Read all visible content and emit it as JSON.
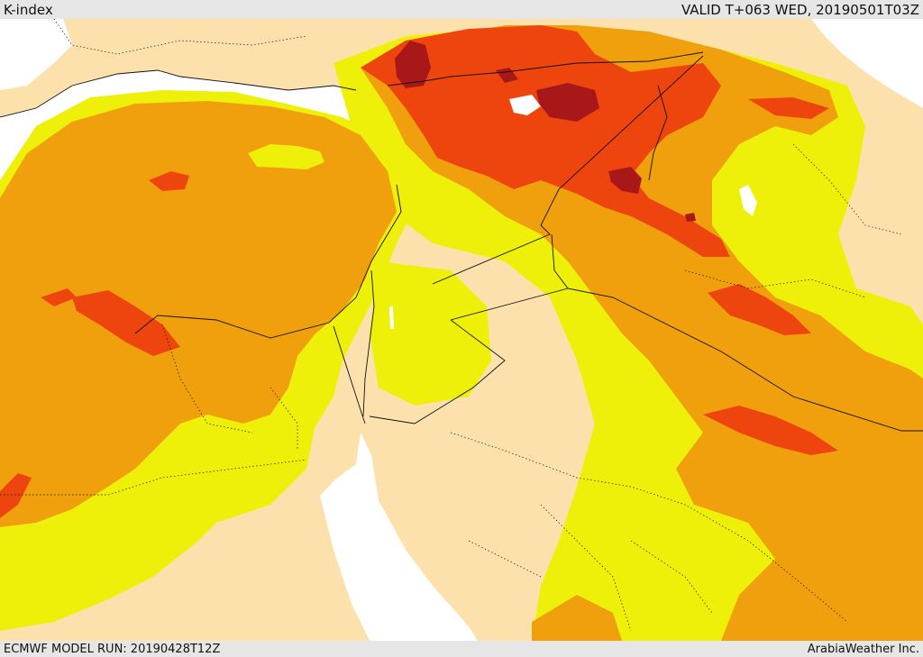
{
  "header": {
    "title": "K-index",
    "valid_time": "VALID T+063 WED, 20190501T03Z"
  },
  "footer": {
    "model_run": "ECMWF MODEL RUN: 20190428T12Z",
    "credit": "ArabiaWeather Inc."
  },
  "map": {
    "colors": {
      "sea": "#ffffff",
      "land": "#fde1ad",
      "k_level_1": "#eef00a",
      "k_level_2": "#f0a00c",
      "k_level_3": "#ee440e",
      "k_level_4": "#a81818",
      "border": "#111111"
    }
  }
}
